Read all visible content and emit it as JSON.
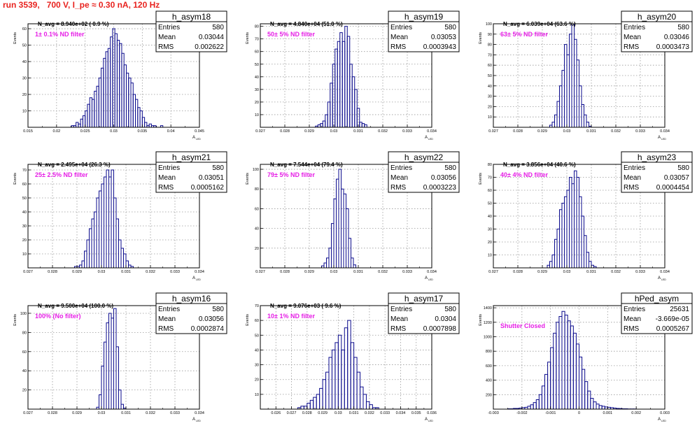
{
  "title": "run 3539,   700 V, I_pe ≈ 0.30 nA, 120 Hz",
  "colors": {
    "title": "#e8231f",
    "histogram": "#0a0a8c",
    "annotation": "#e61ee6",
    "frame": "#000000",
    "grid": "#999999"
  },
  "chart_data": [
    {
      "type": "bar",
      "name": "h_asym18",
      "stats": {
        "entries_label": "Entries",
        "entries": "580",
        "mean_label": "Mean",
        "mean": "0.03044",
        "rms_label": "RMS",
        "rms": "0.002622"
      },
      "navg": "N_avg = 8.940e+02 ( 0.9 %)",
      "filter": "1± 0.1% ND filter",
      "xlabel": "A",
      "xlabel_sub": "LED",
      "ylabel": "Events",
      "xlim": [
        0.015,
        0.045
      ],
      "ylim": [
        0,
        63
      ],
      "xticks": [
        0.015,
        0.02,
        0.025,
        0.03,
        0.035,
        0.04,
        0.045
      ],
      "xtick_labels": [
        "0.015",
        "0.02",
        "0.025",
        "0.03",
        "0.035",
        "0.04",
        "0.045"
      ],
      "yticks": [
        0,
        10,
        20,
        30,
        40,
        50,
        60
      ],
      "ytick_labels": [
        "",
        "10",
        "20",
        "30",
        "40",
        "50",
        "60"
      ],
      "bin_edges_start": 0.0226,
      "bin_width": 0.0004,
      "values": [
        1,
        1,
        3,
        2,
        5,
        7,
        10,
        14,
        18,
        17,
        22,
        25,
        30,
        36,
        42,
        46,
        48,
        55,
        60,
        57,
        53,
        51,
        45,
        38,
        33,
        30,
        27,
        20,
        17,
        12,
        10,
        6,
        3,
        1,
        2,
        1,
        1,
        0,
        0,
        1
      ]
    },
    {
      "type": "bar",
      "name": "h_asym19",
      "stats": {
        "entries_label": "Entries",
        "entries": "580",
        "mean_label": "Mean",
        "mean": "0.03053",
        "rms_label": "RMS",
        "rms": "0.0003943"
      },
      "navg": "N_avg = 4.840e+04 (51.0 %)",
      "filter": "50± 5% ND filter",
      "xlabel": "A",
      "xlabel_sub": "LED",
      "ylabel": "Events",
      "xlim": [
        0.027,
        0.034
      ],
      "ylim": [
        0,
        82
      ],
      "xticks": [
        0.027,
        0.028,
        0.029,
        0.03,
        0.031,
        0.032,
        0.033,
        0.034
      ],
      "xtick_labels": [
        "0.027",
        "0.028",
        "0.029",
        "0.03",
        "0.031",
        "0.032",
        "0.033",
        "0.034"
      ],
      "yticks": [
        0,
        10,
        20,
        30,
        40,
        50,
        60,
        70,
        80
      ],
      "ytick_labels": [
        "",
        "10",
        "20",
        "30",
        "40",
        "50",
        "60",
        "70",
        "80"
      ],
      "bin_edges_start": 0.02925,
      "bin_width": 0.0001,
      "values": [
        1,
        2,
        3,
        5,
        10,
        20,
        35,
        50,
        62,
        68,
        75,
        68,
        80,
        72,
        50,
        40,
        30,
        15,
        4,
        3,
        2
      ]
    },
    {
      "type": "bar",
      "name": "h_asym20",
      "stats": {
        "entries_label": "Entries",
        "entries": "580",
        "mean_label": "Mean",
        "mean": "0.03046",
        "rms_label": "RMS",
        "rms": "0.0003473"
      },
      "navg": "N_avg = 6.039e+04 (63.6 %)",
      "filter": "63± 5% ND filter",
      "xlabel": "A",
      "xlabel_sub": "LED",
      "ylabel": "Events",
      "xlim": [
        0.027,
        0.034
      ],
      "ylim": [
        0,
        100
      ],
      "xticks": [
        0.027,
        0.028,
        0.029,
        0.03,
        0.031,
        0.032,
        0.033,
        0.034
      ],
      "xtick_labels": [
        "0.027",
        "0.028",
        "0.029",
        "0.03",
        "0.031",
        "0.032",
        "0.033",
        "0.034"
      ],
      "yticks": [
        0,
        10,
        20,
        30,
        40,
        50,
        60,
        70,
        80,
        90,
        100
      ],
      "ytick_labels": [
        "",
        "10",
        "20",
        "30",
        "40",
        "50",
        "60",
        "70",
        "80",
        "90",
        "100"
      ],
      "bin_edges_start": 0.0293,
      "bin_width": 0.0001,
      "values": [
        2,
        5,
        12,
        25,
        40,
        55,
        80,
        70,
        90,
        100,
        85,
        65,
        40,
        22,
        12,
        5,
        1
      ]
    },
    {
      "type": "bar",
      "name": "h_asym21",
      "stats": {
        "entries_label": "Entries",
        "entries": "580",
        "mean_label": "Mean",
        "mean": "0.03051",
        "rms_label": "RMS",
        "rms": "0.0005162"
      },
      "navg": "N_avg = 2.495e+04 (26.3 %)",
      "filter": "25± 2.5% ND filter",
      "xlabel": "A",
      "xlabel_sub": "LED",
      "ylabel": "Events",
      "xlim": [
        0.027,
        0.034
      ],
      "ylim": [
        0,
        74
      ],
      "xticks": [
        0.027,
        0.028,
        0.029,
        0.03,
        0.031,
        0.032,
        0.033,
        0.034
      ],
      "xtick_labels": [
        "0.027",
        "0.028",
        "0.029",
        "0.03",
        "0.031",
        "0.032",
        "0.033",
        "0.034"
      ],
      "yticks": [
        0,
        10,
        20,
        30,
        40,
        50,
        60,
        70
      ],
      "ytick_labels": [
        "",
        "10",
        "20",
        "30",
        "40",
        "50",
        "60",
        "70"
      ],
      "bin_edges_start": 0.0289,
      "bin_width": 0.0001,
      "values": [
        1,
        1,
        2,
        5,
        12,
        20,
        28,
        35,
        40,
        50,
        55,
        60,
        65,
        70,
        65,
        70,
        50,
        35,
        20,
        14,
        10,
        5,
        2,
        1
      ]
    },
    {
      "type": "bar",
      "name": "h_asym22",
      "stats": {
        "entries_label": "Entries",
        "entries": "580",
        "mean_label": "Mean",
        "mean": "0.03056",
        "rms_label": "RMS",
        "rms": "0.0003223"
      },
      "navg": "N_avg = 7.544e+04 (79.4 %)",
      "filter": "79± 5% ND filter",
      "xlabel": "A",
      "xlabel_sub": "LED",
      "ylabel": "Events",
      "xlim": [
        0.027,
        0.034
      ],
      "ylim": [
        0,
        105
      ],
      "xticks": [
        0.027,
        0.028,
        0.029,
        0.03,
        0.031,
        0.032,
        0.033,
        0.034
      ],
      "xtick_labels": [
        "0.027",
        "0.028",
        "0.029",
        "0.03",
        "0.031",
        "0.032",
        "0.033",
        "0.034"
      ],
      "yticks": [
        0,
        20,
        40,
        60,
        80,
        100
      ],
      "ytick_labels": [
        "",
        "20",
        "40",
        "60",
        "80",
        "100"
      ],
      "bin_edges_start": 0.0295,
      "bin_width": 0.0001,
      "values": [
        2,
        5,
        10,
        20,
        45,
        70,
        90,
        100,
        80,
        75,
        60,
        30,
        10,
        3
      ]
    },
    {
      "type": "bar",
      "name": "h_asym23",
      "stats": {
        "entries_label": "Entries",
        "entries": "580",
        "mean_label": "Mean",
        "mean": "0.03057",
        "rms_label": "RMS",
        "rms": "0.0004454"
      },
      "navg": "N_avg = 3.856e+04 (40.6 %)",
      "filter": "40± 4% ND filter",
      "xlabel": "A",
      "xlabel_sub": "LED",
      "ylabel": "Events",
      "xlim": [
        0.027,
        0.034
      ],
      "ylim": [
        0,
        80
      ],
      "xticks": [
        0.027,
        0.028,
        0.029,
        0.03,
        0.031,
        0.032,
        0.033,
        0.034
      ],
      "xtick_labels": [
        "0.027",
        "0.028",
        "0.029",
        "0.03",
        "0.031",
        "0.032",
        "0.033",
        "0.034"
      ],
      "yticks": [
        0,
        10,
        20,
        30,
        40,
        50,
        60,
        70,
        80
      ],
      "ytick_labels": [
        "",
        "10",
        "20",
        "30",
        "40",
        "50",
        "60",
        "70",
        "80"
      ],
      "bin_edges_start": 0.0292,
      "bin_width": 0.0001,
      "values": [
        2,
        5,
        10,
        22,
        30,
        45,
        50,
        55,
        60,
        70,
        65,
        75,
        70,
        55,
        40,
        25,
        12,
        5,
        2,
        1
      ]
    },
    {
      "type": "bar",
      "name": "h_asym16",
      "stats": {
        "entries_label": "Entries",
        "entries": "580",
        "mean_label": "Mean",
        "mean": "0.03056",
        "rms_label": "RMS",
        "rms": "0.0002874"
      },
      "navg": "N_avg = 9.500e+04 (100.0 %)",
      "filter": "100% (No filter)",
      "xlabel": "A",
      "xlabel_sub": "LED",
      "ylabel": "Events",
      "xlim": [
        0.027,
        0.034
      ],
      "ylim": [
        0,
        108
      ],
      "xticks": [
        0.027,
        0.028,
        0.029,
        0.03,
        0.031,
        0.032,
        0.033,
        0.034
      ],
      "xtick_labels": [
        "0.027",
        "0.028",
        "0.029",
        "0.03",
        "0.031",
        "0.032",
        "0.033",
        "0.034"
      ],
      "yticks": [
        0,
        20,
        40,
        60,
        80,
        100
      ],
      "ytick_labels": [
        "",
        "20",
        "40",
        "60",
        "80",
        "100"
      ],
      "bin_edges_start": 0.0298,
      "bin_width": 0.0001,
      "values": [
        2,
        15,
        45,
        70,
        90,
        100,
        95,
        105,
        65,
        20,
        5,
        1
      ]
    },
    {
      "type": "bar",
      "name": "h_asym17",
      "stats": {
        "entries_label": "Entries",
        "entries": "580",
        "mean_label": "Mean",
        "mean": "0.0304",
        "rms_label": "RMS",
        "rms": "0.0007898"
      },
      "navg": "N_avg = 9.076e+03 ( 9.6 %)",
      "filter": "10± 1% ND filter",
      "xlabel": "A",
      "xlabel_sub": "LED",
      "ylabel": "Events",
      "xlim": [
        0.025,
        0.036
      ],
      "ylim": [
        0,
        70
      ],
      "xticks": [
        0.025,
        0.026,
        0.027,
        0.028,
        0.029,
        0.03,
        0.031,
        0.032,
        0.033,
        0.034,
        0.035,
        0.036
      ],
      "xtick_labels": [
        "",
        "0.026",
        "0.027",
        "0.028",
        "0.029",
        "0.03",
        "0.031",
        "0.032",
        "0.033",
        "0.034",
        "0.035",
        "0.036"
      ],
      "yticks": [
        0,
        10,
        20,
        30,
        40,
        50,
        60,
        70
      ],
      "ytick_labels": [
        "",
        "10",
        "20",
        "30",
        "40",
        "50",
        "60",
        "70"
      ],
      "bin_edges_start": 0.0274,
      "bin_width": 0.0002,
      "values": [
        1,
        2,
        2,
        4,
        6,
        8,
        10,
        14,
        20,
        25,
        35,
        40,
        45,
        50,
        40,
        55,
        60,
        45,
        35,
        25,
        15,
        10,
        5,
        3,
        1,
        1
      ]
    },
    {
      "type": "bar",
      "name": "hPed_asym",
      "stats": {
        "entries_label": "Entries",
        "entries": "25631",
        "mean_label": "Mean",
        "mean": "-3.669e-05",
        "rms_label": "RMS",
        "rms": "0.0005267"
      },
      "navg": "",
      "filter": "Shutter Closed",
      "xlabel": "A",
      "xlabel_sub": "LED",
      "ylabel": "Events",
      "xlim": [
        -0.003,
        0.003
      ],
      "ylim": [
        0,
        1430
      ],
      "xticks": [
        -0.003,
        -0.002,
        -0.001,
        0,
        0.001,
        0.002,
        0.003
      ],
      "xtick_labels": [
        "-0.003",
        "-0.002",
        "-0.001",
        "0",
        "0.001",
        "0.002",
        "0.003"
      ],
      "yticks": [
        0,
        200,
        400,
        600,
        800,
        1000,
        1200,
        1400
      ],
      "ytick_labels": [
        "",
        "200",
        "400",
        "600",
        "800",
        "1000",
        "1200",
        "1400"
      ],
      "bin_edges_start": -0.0025,
      "bin_width": 0.0001,
      "values": [
        5,
        5,
        10,
        10,
        15,
        20,
        25,
        40,
        60,
        90,
        130,
        200,
        320,
        480,
        650,
        850,
        1050,
        1200,
        1280,
        1350,
        1300,
        1220,
        1150,
        1050,
        900,
        720,
        550,
        380,
        250,
        150,
        100,
        70,
        50,
        40,
        30,
        25,
        20,
        15,
        10,
        8,
        5,
        5,
        3,
        3,
        2
      ]
    }
  ]
}
